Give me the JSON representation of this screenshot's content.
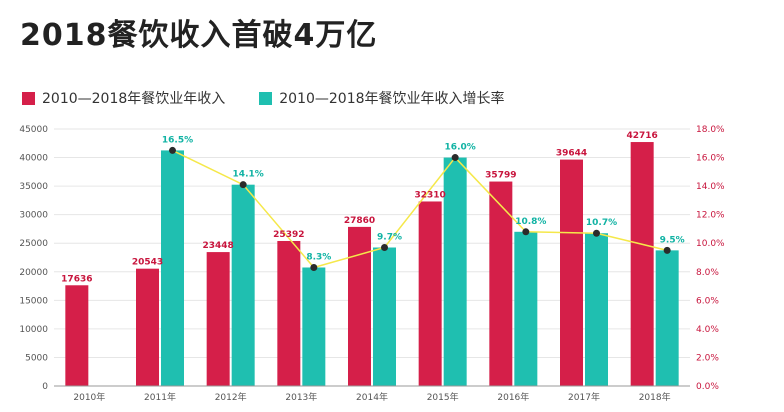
{
  "title": "2018餐饮收入首破4万亿",
  "colors": {
    "revenue": "#d51f49",
    "growth": "#1fbfb0",
    "line": "#f5e84a",
    "marker": "#2b2b2b"
  },
  "chart_data": {
    "type": "bar",
    "categories": [
      "2010年",
      "2011年",
      "2012年",
      "2013年",
      "2014年",
      "2015年",
      "2016年",
      "2017年",
      "2018年"
    ],
    "series": [
      {
        "name": "2010—2018年餐饮业年收入",
        "axis": "left",
        "values": [
          17636,
          20543,
          23448,
          25392,
          27860,
          32310,
          35799,
          39644,
          42716
        ],
        "labels": [
          "17636",
          "20543",
          "23448",
          "25392",
          "27860",
          "32310",
          "35799",
          "39644",
          "42716"
        ]
      },
      {
        "name": "2010—2018年餐饮业年收入增长率",
        "axis": "right",
        "values": [
          null,
          16.5,
          14.1,
          8.3,
          9.7,
          16.0,
          10.8,
          10.7,
          9.5
        ],
        "labels": [
          "",
          "16.5%",
          "14.1%",
          "8.3%",
          "9.7%",
          "16.0%",
          "10.8%",
          "10.7%",
          "9.5%"
        ]
      }
    ],
    "y_left_ticks": [
      "0",
      "5000",
      "10000",
      "15000",
      "20000",
      "25000",
      "30000",
      "35000",
      "40000",
      "45000"
    ],
    "y_right_ticks": [
      "0.0%",
      "2.0%",
      "4.0%",
      "6.0%",
      "8.0%",
      "10.0%",
      "12.0%",
      "14.0%",
      "16.0%",
      "18.0%"
    ],
    "ylim_left": [
      0,
      45000
    ],
    "ylim_right": [
      0,
      18
    ],
    "grid": true,
    "legend_position": "top-left",
    "overlay": "line connecting growth rates with dot markers"
  }
}
